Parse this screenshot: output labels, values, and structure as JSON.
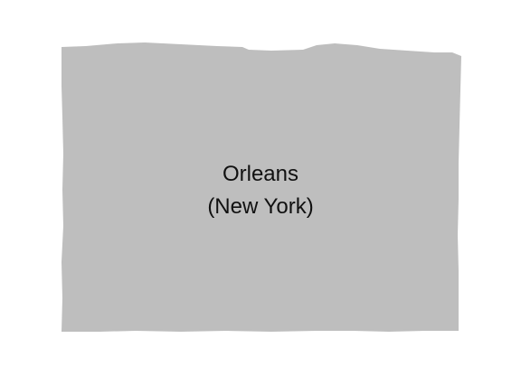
{
  "map": {
    "region_name": "Orleans",
    "region_state": "(New York)",
    "colors": {
      "background": "#ffffff",
      "region_fill": "#bebebe",
      "label_text": "#111111"
    }
  }
}
